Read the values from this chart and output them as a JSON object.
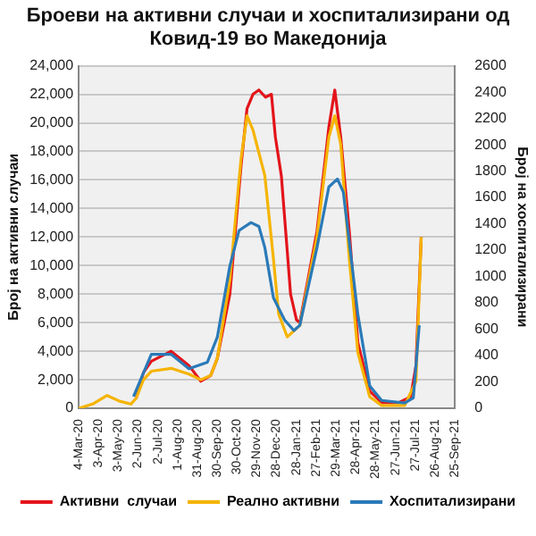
{
  "chart_data": {
    "type": "line",
    "title": "Броеви на активни случаи и хоспитализирани од Ковид-19 во Македонија",
    "ylabel": "Број на активни случаи",
    "y2label": "Број на хоспитализирани",
    "xlim": [
      "2020-03-04",
      "2021-09-25"
    ],
    "xticks": [
      {
        "value": "2020-03-04",
        "label": "4-Mar-20"
      },
      {
        "value": "2020-04-03",
        "label": "3-Apr-20"
      },
      {
        "value": "2020-05-03",
        "label": "3-May-20"
      },
      {
        "value": "2020-06-02",
        "label": "2-Jun-20"
      },
      {
        "value": "2020-07-02",
        "label": "2-Jul-20"
      },
      {
        "value": "2020-08-01",
        "label": "1-Aug-20"
      },
      {
        "value": "2020-08-31",
        "label": "31-Aug-20"
      },
      {
        "value": "2020-09-30",
        "label": "30-Sep-20"
      },
      {
        "value": "2020-10-30",
        "label": "30-Oct-20"
      },
      {
        "value": "2020-11-29",
        "label": "29-Nov-20"
      },
      {
        "value": "2020-12-28",
        "label": "28-Dec-20"
      },
      {
        "value": "2021-01-28",
        "label": "28-Jan-21"
      },
      {
        "value": "2021-02-27",
        "label": "27-Feb-21"
      },
      {
        "value": "2021-03-29",
        "label": "29-Mar-21"
      },
      {
        "value": "2021-04-28",
        "label": "28-Apr-21"
      },
      {
        "value": "2021-05-28",
        "label": "28-May-21"
      },
      {
        "value": "2021-06-27",
        "label": "27-Jun-21"
      },
      {
        "value": "2021-07-27",
        "label": "27-Jul-21"
      },
      {
        "value": "2021-08-26",
        "label": "26-Aug-21"
      },
      {
        "value": "2021-09-25",
        "label": "25-Sep-21"
      }
    ],
    "ylim": [
      0,
      24000
    ],
    "yticks": [
      {
        "value": 0,
        "label": "0"
      },
      {
        "value": 2000,
        "label": "2,000"
      },
      {
        "value": 4000,
        "label": "4,000"
      },
      {
        "value": 6000,
        "label": "6,000"
      },
      {
        "value": 8000,
        "label": "8,000"
      },
      {
        "value": 10000,
        "label": "10,000"
      },
      {
        "value": 12000,
        "label": "12,000"
      },
      {
        "value": 14000,
        "label": "14,000"
      },
      {
        "value": 16000,
        "label": "16,000"
      },
      {
        "value": 18000,
        "label": "18,000"
      },
      {
        "value": 20000,
        "label": "20,000"
      },
      {
        "value": 22000,
        "label": "22,000"
      },
      {
        "value": 24000,
        "label": "24,000"
      }
    ],
    "y2lim": [
      0,
      2600
    ],
    "y2ticks": [
      0,
      200,
      400,
      600,
      800,
      1000,
      1200,
      1400,
      1600,
      1800,
      2000,
      2200,
      2400,
      2600
    ],
    "grid": "y",
    "legend": "bottom",
    "marker": "none",
    "series": [
      {
        "name": "Активни  случаи",
        "color": "#e3141b",
        "x": [
          "2020-05-30",
          "2020-06-10",
          "2020-06-22",
          "2020-07-22",
          "2020-08-18",
          "2020-09-05",
          "2020-09-20",
          "2020-09-30",
          "2020-10-19",
          "2020-11-05",
          "2020-11-14",
          "2020-11-23",
          "2020-12-02",
          "2020-12-12",
          "2020-12-21",
          "2020-12-27",
          "2021-01-05",
          "2021-01-14",
          "2021-01-19",
          "2021-01-28",
          "2021-02-02",
          "2021-02-28",
          "2021-03-18",
          "2021-03-27",
          "2021-04-05",
          "2021-04-18",
          "2021-05-01",
          "2021-05-19",
          "2021-06-06",
          "2021-07-02",
          "2021-07-20",
          "2021-07-28",
          "2021-08-05"
        ],
        "values": [
          700,
          2500,
          3300,
          4000,
          3000,
          1900,
          2300,
          3500,
          8000,
          17000,
          21000,
          22000,
          22300,
          21800,
          22000,
          19000,
          16300,
          11000,
          8000,
          6200,
          6000,
          12400,
          19700,
          22300,
          19000,
          12400,
          4600,
          1200,
          400,
          400,
          800,
          3000,
          12000
        ]
      },
      {
        "name": "Реално активни",
        "color": "#f5b400",
        "x": [
          "2020-03-04",
          "2020-03-25",
          "2020-04-16",
          "2020-05-05",
          "2020-05-22",
          "2020-05-30",
          "2020-06-10",
          "2020-06-22",
          "2020-07-22",
          "2020-08-18",
          "2020-09-05",
          "2020-09-20",
          "2020-09-30",
          "2020-10-19",
          "2020-11-05",
          "2020-11-14",
          "2020-11-23",
          "2020-12-11",
          "2020-12-24",
          "2021-01-01",
          "2021-01-14",
          "2021-02-02",
          "2021-02-28",
          "2021-03-18",
          "2021-03-27",
          "2021-04-05",
          "2021-04-18",
          "2021-05-01",
          "2021-05-19",
          "2021-06-06",
          "2021-07-11",
          "2021-07-28",
          "2021-08-05"
        ],
        "values": [
          0,
          300,
          900,
          500,
          300,
          700,
          2000,
          2600,
          2800,
          2400,
          2000,
          2300,
          3500,
          9000,
          17500,
          20500,
          19500,
          16300,
          10500,
          6600,
          5000,
          5800,
          12000,
          19000,
          20500,
          18500,
          10500,
          3900,
          800,
          200,
          200,
          1900,
          12000
        ]
      },
      {
        "name": "Хоспитализирани",
        "color": "#2a7ab8",
        "axis": "y2",
        "x": [
          "2020-05-26",
          "2020-06-22",
          "2020-07-22",
          "2020-08-18",
          "2020-09-15",
          "2020-09-30",
          "2020-10-19",
          "2020-11-02",
          "2020-11-20",
          "2020-12-02",
          "2020-12-11",
          "2020-12-24",
          "2021-01-10",
          "2021-01-24",
          "2021-02-02",
          "2021-02-28",
          "2021-03-18",
          "2021-03-31",
          "2021-04-09",
          "2021-05-01",
          "2021-05-19",
          "2021-06-06",
          "2021-07-11",
          "2021-07-24",
          "2021-08-02"
        ],
        "values": [
          90,
          410,
          410,
          300,
          350,
          540,
          1080,
          1350,
          1410,
          1380,
          1220,
          840,
          670,
          590,
          630,
          1220,
          1680,
          1740,
          1640,
          710,
          170,
          60,
          40,
          80,
          630
        ]
      }
    ]
  }
}
